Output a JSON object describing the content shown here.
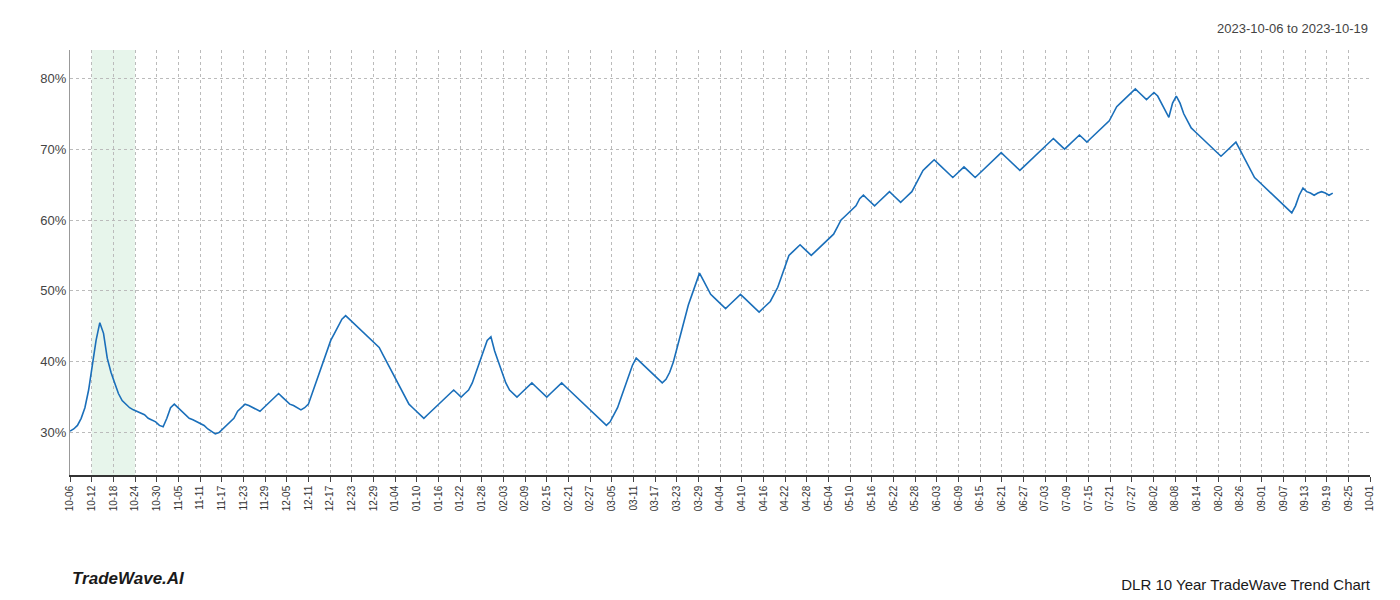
{
  "chart_data": {
    "type": "line",
    "title": "DLR 10 Year TradeWave Trend Chart",
    "subtitle": "2023-10-06 to 2023-10-19",
    "annotations": [
      "TradeWave.AI"
    ],
    "color": "#1a6fba",
    "grid": true,
    "shaded_range": [
      "10-12",
      "10-24"
    ],
    "shaded_color": "#d4edda",
    "xlim": [
      0,
      349
    ],
    "xticks": [
      {
        "value": 0,
        "label": "10-06"
      },
      {
        "value": 5.816667,
        "label": "10-12"
      },
      {
        "value": 11.633333,
        "label": "10-18"
      },
      {
        "value": 17.45,
        "label": "10-24"
      },
      {
        "value": 23.266667,
        "label": "10-30"
      },
      {
        "value": 29.083333,
        "label": "11-05"
      },
      {
        "value": 34.9,
        "label": "11-11"
      },
      {
        "value": 40.716667,
        "label": "11-17"
      },
      {
        "value": 46.533333,
        "label": "11-23"
      },
      {
        "value": 52.35,
        "label": "11-29"
      },
      {
        "value": 58.166667,
        "label": "12-05"
      },
      {
        "value": 63.983333,
        "label": "12-11"
      },
      {
        "value": 69.8,
        "label": "12-17"
      },
      {
        "value": 75.616667,
        "label": "12-23"
      },
      {
        "value": 81.433333,
        "label": "12-29"
      },
      {
        "value": 87.25,
        "label": "01-04"
      },
      {
        "value": 93.066667,
        "label": "01-10"
      },
      {
        "value": 98.883333,
        "label": "01-16"
      },
      {
        "value": 104.7,
        "label": "01-22"
      },
      {
        "value": 110.516667,
        "label": "01-28"
      },
      {
        "value": 116.333333,
        "label": "02-03"
      },
      {
        "value": 122.15,
        "label": "02-09"
      },
      {
        "value": 127.966667,
        "label": "02-15"
      },
      {
        "value": 133.783333,
        "label": "02-21"
      },
      {
        "value": 139.6,
        "label": "02-27"
      },
      {
        "value": 145.416667,
        "label": "03-05"
      },
      {
        "value": 151.233333,
        "label": "03-11"
      },
      {
        "value": 157.05,
        "label": "03-17"
      },
      {
        "value": 162.866667,
        "label": "03-23"
      },
      {
        "value": 168.683333,
        "label": "03-29"
      },
      {
        "value": 174.5,
        "label": "04-04"
      },
      {
        "value": 180.316667,
        "label": "04-10"
      },
      {
        "value": 186.133333,
        "label": "04-16"
      },
      {
        "value": 191.95,
        "label": "04-22"
      },
      {
        "value": 197.766667,
        "label": "04-28"
      },
      {
        "value": 203.583333,
        "label": "05-04"
      },
      {
        "value": 209.4,
        "label": "05-10"
      },
      {
        "value": 215.216667,
        "label": "05-16"
      },
      {
        "value": 221.033333,
        "label": "05-22"
      },
      {
        "value": 226.85,
        "label": "05-28"
      },
      {
        "value": 232.666667,
        "label": "06-03"
      },
      {
        "value": 238.483333,
        "label": "06-09"
      },
      {
        "value": 244.3,
        "label": "06-15"
      },
      {
        "value": 250.116667,
        "label": "06-21"
      },
      {
        "value": 255.933333,
        "label": "06-27"
      },
      {
        "value": 261.75,
        "label": "07-03"
      },
      {
        "value": 267.566667,
        "label": "07-09"
      },
      {
        "value": 273.383333,
        "label": "07-15"
      },
      {
        "value": 279.2,
        "label": "07-21"
      },
      {
        "value": 285.016667,
        "label": "07-27"
      },
      {
        "value": 290.833333,
        "label": "08-02"
      },
      {
        "value": 296.65,
        "label": "08-08"
      },
      {
        "value": 302.466667,
        "label": "08-14"
      },
      {
        "value": 308.283333,
        "label": "08-20"
      },
      {
        "value": 314.1,
        "label": "08-26"
      },
      {
        "value": 319.916667,
        "label": "09-01"
      },
      {
        "value": 325.733333,
        "label": "09-07"
      },
      {
        "value": 331.55,
        "label": "09-13"
      },
      {
        "value": 337.366667,
        "label": "09-19"
      },
      {
        "value": 343.183333,
        "label": "09-25"
      },
      {
        "value": 349,
        "label": "10-01"
      }
    ],
    "ylim": [
      24,
      84
    ],
    "yticks": [
      {
        "value": 30,
        "label": "30%"
      },
      {
        "value": 40,
        "label": "40%"
      },
      {
        "value": 50,
        "label": "50%"
      },
      {
        "value": 60,
        "label": "60%"
      },
      {
        "value": 70,
        "label": "70%"
      },
      {
        "value": 80,
        "label": "80%"
      }
    ],
    "values": [
      30.2,
      30.5,
      31.0,
      32.0,
      33.5,
      36.0,
      39.5,
      43.0,
      45.5,
      44.0,
      40.5,
      38.5,
      37.0,
      35.5,
      34.5,
      34.0,
      33.5,
      33.2,
      33.0,
      32.8,
      32.5,
      32.0,
      31.8,
      31.5,
      31.0,
      30.8,
      32.0,
      33.5,
      34.0,
      33.5,
      33.0,
      32.5,
      32.0,
      31.8,
      31.5,
      31.2,
      31.0,
      30.5,
      30.2,
      29.8,
      30.0,
      30.5,
      31.0,
      31.5,
      32.0,
      33.0,
      33.5,
      34.0,
      33.8,
      33.5,
      33.2,
      33.0,
      33.5,
      34.0,
      34.5,
      35.0,
      35.5,
      35.0,
      34.5,
      34.0,
      33.8,
      33.5,
      33.2,
      33.5,
      34.0,
      35.5,
      37.0,
      38.5,
      40.0,
      41.5,
      43.0,
      44.0,
      45.0,
      46.0,
      46.5,
      46.0,
      45.5,
      45.0,
      44.5,
      44.0,
      43.5,
      43.0,
      42.5,
      42.0,
      41.0,
      40.0,
      39.0,
      38.0,
      37.0,
      36.0,
      35.0,
      34.0,
      33.5,
      33.0,
      32.5,
      32.0,
      32.5,
      33.0,
      33.5,
      34.0,
      34.5,
      35.0,
      35.5,
      36.0,
      35.5,
      35.0,
      35.5,
      36.0,
      37.0,
      38.5,
      40.0,
      41.5,
      43.0,
      43.5,
      41.5,
      40.0,
      38.5,
      37.0,
      36.0,
      35.5,
      35.0,
      35.5,
      36.0,
      36.5,
      37.0,
      36.5,
      36.0,
      35.5,
      35.0,
      35.5,
      36.0,
      36.5,
      37.0,
      36.5,
      36.0,
      35.5,
      35.0,
      34.5,
      34.0,
      33.5,
      33.0,
      32.5,
      32.0,
      31.5,
      31.0,
      31.5,
      32.5,
      33.5,
      35.0,
      36.5,
      38.0,
      39.5,
      40.5,
      40.0,
      39.5,
      39.0,
      38.5,
      38.0,
      37.5,
      37.0,
      37.5,
      38.5,
      40.0,
      42.0,
      44.0,
      46.0,
      48.0,
      49.5,
      51.0,
      52.5,
      51.5,
      50.5,
      49.5,
      49.0,
      48.5,
      48.0,
      47.5,
      48.0,
      48.5,
      49.0,
      49.5,
      49.0,
      48.5,
      48.0,
      47.5,
      47.0,
      47.5,
      48.0,
      48.5,
      49.5,
      50.5,
      52.0,
      53.5,
      55.0,
      55.5,
      56.0,
      56.5,
      56.0,
      55.5,
      55.0,
      55.5,
      56.0,
      56.5,
      57.0,
      57.5,
      58.0,
      59.0,
      60.0,
      60.5,
      61.0,
      61.5,
      62.0,
      63.0,
      63.5,
      63.0,
      62.5,
      62.0,
      62.5,
      63.0,
      63.5,
      64.0,
      63.5,
      63.0,
      62.5,
      63.0,
      63.5,
      64.0,
      65.0,
      66.0,
      67.0,
      67.5,
      68.0,
      68.5,
      68.0,
      67.5,
      67.0,
      66.5,
      66.0,
      66.5,
      67.0,
      67.5,
      67.0,
      66.5,
      66.0,
      66.5,
      67.0,
      67.5,
      68.0,
      68.5,
      69.0,
      69.5,
      69.0,
      68.5,
      68.0,
      67.5,
      67.0,
      67.5,
      68.0,
      68.5,
      69.0,
      69.5,
      70.0,
      70.5,
      71.0,
      71.5,
      71.0,
      70.5,
      70.0,
      70.5,
      71.0,
      71.5,
      72.0,
      71.5,
      71.0,
      71.5,
      72.0,
      72.5,
      73.0,
      73.5,
      74.0,
      75.0,
      76.0,
      76.5,
      77.0,
      77.5,
      78.0,
      78.5,
      78.0,
      77.5,
      77.0,
      77.5,
      78.0,
      77.5,
      76.5,
      75.5,
      74.5,
      76.5,
      77.5,
      76.5,
      75.0,
      74.0,
      73.0,
      72.5,
      72.0,
      71.5,
      71.0,
      70.5,
      70.0,
      69.5,
      69.0,
      69.5,
      70.0,
      70.5,
      71.0,
      70.0,
      69.0,
      68.0,
      67.0,
      66.0,
      65.5,
      65.0,
      64.5,
      64.0,
      63.5,
      63.0,
      62.5,
      62.0,
      61.5,
      61.0,
      62.0,
      63.5,
      64.5,
      64.0,
      63.8,
      63.5,
      63.8,
      64.0,
      63.8,
      63.5,
      63.8
    ]
  }
}
